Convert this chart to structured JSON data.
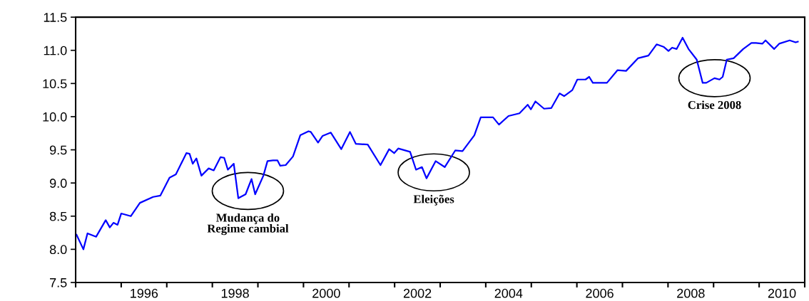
{
  "chart_data": {
    "type": "line",
    "x": [
      1995.02,
      1995.17,
      1995.26,
      1995.45,
      1995.66,
      1995.75,
      1995.83,
      1995.92,
      1996.0,
      1996.21,
      1996.41,
      1996.7,
      1996.86,
      1997.06,
      1997.2,
      1997.43,
      1997.5,
      1997.57,
      1997.65,
      1997.76,
      1997.92,
      1998.03,
      1998.18,
      1998.26,
      1998.34,
      1998.47,
      1998.57,
      1998.73,
      1998.86,
      1998.94,
      1999.12,
      1999.21,
      1999.33,
      1999.43,
      1999.49,
      1999.61,
      1999.77,
      1999.93,
      2000.11,
      2000.16,
      2000.32,
      2000.42,
      2000.6,
      2000.83,
      2001.02,
      2001.15,
      2001.41,
      2001.69,
      2001.88,
      2001.99,
      2002.08,
      2002.34,
      2002.47,
      2002.6,
      2002.7,
      2002.9,
      2003.1,
      2003.33,
      2003.49,
      2003.75,
      2003.89,
      2004.16,
      2004.29,
      2004.5,
      2004.74,
      2004.92,
      2004.99,
      2005.09,
      2005.28,
      2005.44,
      2005.62,
      2005.72,
      2005.9,
      2006.01,
      2006.19,
      2006.27,
      2006.35,
      2006.66,
      2006.89,
      2007.08,
      2007.34,
      2007.57,
      2007.75,
      2007.91,
      2008.01,
      2008.09,
      2008.19,
      2008.32,
      2008.45,
      2008.63,
      2008.76,
      2008.84,
      2009.02,
      2009.13,
      2009.2,
      2009.29,
      2009.44,
      2009.65,
      2009.83,
      2009.93,
      2010.07,
      2010.14,
      2010.33,
      2010.44,
      2010.67,
      2010.8,
      2010.85
    ],
    "series": [
      {
        "color": "#0000ff",
        "values": [
          8.22,
          8.0,
          8.24,
          8.19,
          8.44,
          8.33,
          8.4,
          8.37,
          8.54,
          8.5,
          8.7,
          8.79,
          8.81,
          9.08,
          9.13,
          9.45,
          9.44,
          9.29,
          9.37,
          9.11,
          9.22,
          9.19,
          9.39,
          9.38,
          9.2,
          9.29,
          8.77,
          8.83,
          9.06,
          8.83,
          9.11,
          9.33,
          9.34,
          9.34,
          9.26,
          9.27,
          9.4,
          9.72,
          9.78,
          9.77,
          9.61,
          9.71,
          9.76,
          9.51,
          9.77,
          9.59,
          9.58,
          9.27,
          9.51,
          9.45,
          9.52,
          9.47,
          9.2,
          9.24,
          9.07,
          9.33,
          9.24,
          9.49,
          9.48,
          9.72,
          9.99,
          9.99,
          9.88,
          10.01,
          10.05,
          10.18,
          10.11,
          10.23,
          10.12,
          10.13,
          10.35,
          10.31,
          10.4,
          10.56,
          10.56,
          10.6,
          10.51,
          10.51,
          10.7,
          10.69,
          10.88,
          10.92,
          11.09,
          11.05,
          10.99,
          11.04,
          11.02,
          11.19,
          11.02,
          10.86,
          10.51,
          10.51,
          10.58,
          10.56,
          10.6,
          10.86,
          10.88,
          11.02,
          11.11,
          11.11,
          11.1,
          11.15,
          11.02,
          11.1,
          11.15,
          11.12,
          11.13
        ]
      }
    ],
    "xlim": [
      1995,
      2011
    ],
    "xticks": [
      {
        "value": 1995,
        "label": null
      },
      {
        "value": 1996,
        "label": null
      },
      {
        "value": 1997,
        "label": null
      },
      {
        "value": 1998,
        "label": null
      },
      {
        "value": 1999,
        "label": null
      },
      {
        "value": 2000,
        "label": null
      },
      {
        "value": 2001,
        "label": null
      },
      {
        "value": 2002,
        "label": null
      },
      {
        "value": 2003,
        "label": null
      },
      {
        "value": 2004,
        "label": null
      },
      {
        "value": 2005,
        "label": null
      },
      {
        "value": 2006,
        "label": null
      },
      {
        "value": 2007,
        "label": null
      },
      {
        "value": 2008,
        "label": null
      },
      {
        "value": 2009,
        "label": null
      },
      {
        "value": 2010,
        "label": null
      },
      {
        "value": 2011,
        "label": null
      },
      {
        "value": 1996.5,
        "label": "1996"
      },
      {
        "value": 1998.5,
        "label": "1998"
      },
      {
        "value": 2000.5,
        "label": "2000"
      },
      {
        "value": 2002.5,
        "label": "2002"
      },
      {
        "value": 2004.5,
        "label": "2004"
      },
      {
        "value": 2006.5,
        "label": "2006"
      },
      {
        "value": 2008.5,
        "label": "2008"
      },
      {
        "value": 2010.5,
        "label": "2010"
      }
    ],
    "ylim": [
      7.5,
      11.5
    ],
    "yticks": [
      {
        "value": 7.5,
        "label": "7.5"
      },
      {
        "value": 8.0,
        "label": "8.0"
      },
      {
        "value": 8.5,
        "label": "8.5"
      },
      {
        "value": 9.0,
        "label": "9.0"
      },
      {
        "value": 9.5,
        "label": "9.5"
      },
      {
        "value": 10.0,
        "label": "10.0"
      },
      {
        "value": 10.5,
        "label": "10.5"
      },
      {
        "value": 11.0,
        "label": "11.0"
      },
      {
        "value": 11.5,
        "label": "11.5"
      }
    ],
    "annotations": [
      {
        "text": "Mudança do\nRegime cambial",
        "x": 1998.78,
        "y": 8.88
      },
      {
        "text": "Eleições",
        "x": 2002.86,
        "y": 9.16
      },
      {
        "text": "Crise 2008",
        "x": 2009.02,
        "y": 10.58
      }
    ],
    "grid": false,
    "marker": "none",
    "line_style": "solid"
  }
}
